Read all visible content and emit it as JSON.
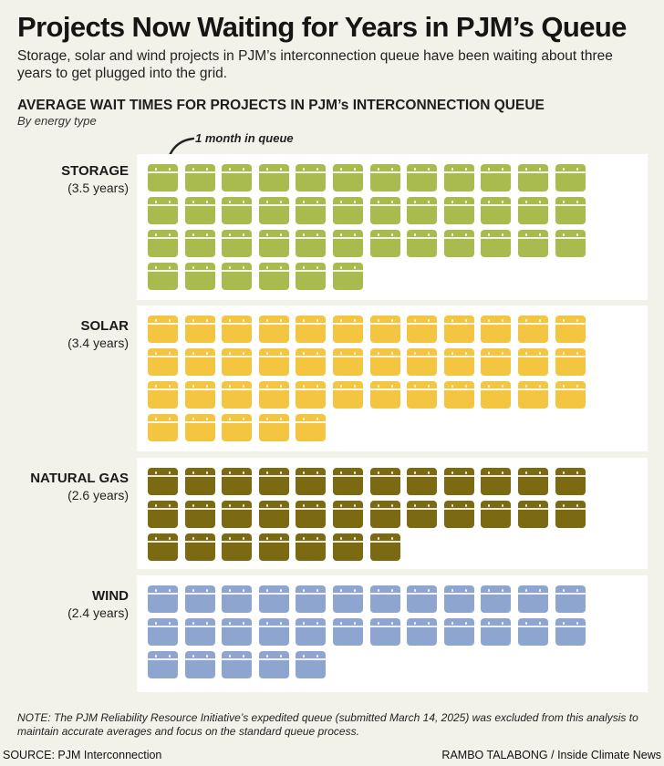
{
  "title": "Projects Now Waiting for Years in PJM’s Queue",
  "subtitle": "Storage, solar and wind projects in PJM’s interconnection queue have been waiting about three years to get plugged into the grid.",
  "chart_title": "AVERAGE WAIT TIMES FOR PROJECTS IN PJM’s INTERCONNECTION QUEUE",
  "chart_subtitle": "By energy type",
  "annotation": "1 month in queue",
  "note": "NOTE: The PJM Reliability Resource Initiative’s expedited queue (submitted March 14, 2025) was excluded from this analysis to maintain accurate averages and focus on the standard queue process.",
  "source": "SOURCE: PJM Interconnection",
  "credit": "RAMBO TALABONG / Inside Climate News",
  "chart_data": {
    "type": "pictogram",
    "unit_per_icon": "1 month in queue",
    "icon": "calendar-icon",
    "icons_per_row": 12,
    "series": [
      {
        "name": "STORAGE",
        "label": "(3.5 years)",
        "years": 3.5,
        "months": 42,
        "color": "#a9ba4f"
      },
      {
        "name": "SOLAR",
        "label": "(3.4 years)",
        "years": 3.4,
        "months": 41,
        "color": "#f3c540"
      },
      {
        "name": "NATURAL GAS",
        "label": "(2.6 years)",
        "years": 2.6,
        "months": 31,
        "color": "#7c6a12"
      },
      {
        "name": "WIND",
        "label": "(2.4 years)",
        "years": 2.4,
        "months": 29,
        "color": "#8ea6cf"
      }
    ]
  }
}
